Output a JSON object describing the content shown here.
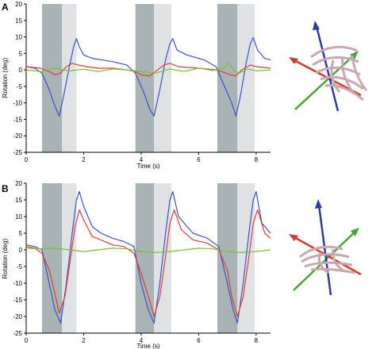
{
  "chart_data": [
    {
      "panel": "A",
      "type": "line",
      "xlabel": "Time (s)",
      "ylabel": "Rotation (deg)",
      "xlim": [
        0,
        8.5
      ],
      "ylim": [
        -25,
        20
      ],
      "x_ticks": [
        0,
        2,
        4,
        6,
        8
      ],
      "y_ticks": [
        -25,
        -20,
        -15,
        -10,
        -5,
        0,
        5,
        10,
        15,
        20
      ],
      "shaded_bands": [
        {
          "x0": 0.55,
          "x1": 1.25,
          "color": "#a7b3b4"
        },
        {
          "x0": 1.25,
          "x1": 1.75,
          "color": "#dfe2e4"
        },
        {
          "x0": 3.8,
          "x1": 4.45,
          "color": "#a7b3b4"
        },
        {
          "x0": 4.45,
          "x1": 5.05,
          "color": "#dfe2e4"
        },
        {
          "x0": 6.65,
          "x1": 7.35,
          "color": "#a7b3b4"
        },
        {
          "x0": 7.35,
          "x1": 7.95,
          "color": "#dfe2e4"
        }
      ],
      "series": [
        {
          "color": "#3b53c8",
          "x": [
            0,
            0.3,
            0.55,
            0.8,
            1.0,
            1.15,
            1.3,
            1.5,
            1.65,
            1.75,
            1.85,
            2.0,
            2.3,
            3.0,
            3.5,
            3.8,
            4.1,
            4.3,
            4.45,
            4.65,
            4.85,
            5.0,
            5.1,
            5.25,
            5.6,
            6.2,
            6.6,
            6.9,
            7.15,
            7.3,
            7.45,
            7.65,
            7.8,
            7.9,
            8.05,
            8.3,
            8.5
          ],
          "y": [
            1,
            0.5,
            -1,
            -6,
            -11,
            -14,
            -8,
            1,
            7,
            9.5,
            7,
            4.5,
            3.5,
            2.5,
            1.5,
            -1,
            -7,
            -12,
            -14,
            -6,
            3,
            8,
            9.5,
            6,
            4.5,
            3,
            1,
            -5,
            -10,
            -14,
            -8,
            2,
            8,
            9.8,
            6,
            3.5,
            3
          ]
        },
        {
          "color": "#e03d2f",
          "x": [
            0,
            0.5,
            0.8,
            1.0,
            1.2,
            1.4,
            1.6,
            1.8,
            2.1,
            2.5,
            3.0,
            3.5,
            3.8,
            4.0,
            4.3,
            4.5,
            4.8,
            5.0,
            5.3,
            6.0,
            6.6,
            6.9,
            7.1,
            7.3,
            7.5,
            7.8,
            8.0,
            8.5
          ],
          "y": [
            1,
            0.5,
            -0.5,
            -1.5,
            -1,
            1,
            2,
            1.5,
            1,
            0.5,
            0.5,
            0,
            -0.5,
            -1.5,
            -1.8,
            -0.5,
            1.5,
            2,
            1,
            0.5,
            0,
            -0.8,
            -1.5,
            -1.8,
            0,
            1.5,
            1,
            0.5
          ]
        },
        {
          "color": "#7ac12b",
          "x": [
            0,
            0.5,
            1.0,
            1.5,
            2.0,
            2.5,
            3.0,
            3.5,
            4.0,
            4.5,
            5.0,
            5.5,
            6.0,
            6.5,
            6.9,
            7.05,
            7.2,
            7.4,
            7.7,
            8.0,
            8.5
          ],
          "y": [
            0,
            -0.5,
            0.5,
            -0.3,
            0.2,
            -0.5,
            0.3,
            0,
            -0.5,
            -1,
            0.3,
            -0.5,
            0.5,
            -0.2,
            0.5,
            2.2,
            0,
            -1,
            0.3,
            -0.3,
            0
          ]
        }
      ]
    },
    {
      "panel": "B",
      "type": "line",
      "xlabel": "Time (s)",
      "ylabel": "Rotation (deg)",
      "xlim": [
        0,
        8.5
      ],
      "ylim": [
        -25,
        20
      ],
      "x_ticks": [
        0,
        2,
        4,
        6,
        8
      ],
      "y_ticks": [
        -25,
        -20,
        -15,
        -10,
        -5,
        0,
        5,
        10,
        15,
        20
      ],
      "shaded_bands": [
        {
          "x0": 0.55,
          "x1": 1.25,
          "color": "#a7b3b4"
        },
        {
          "x0": 1.25,
          "x1": 1.75,
          "color": "#dfe2e4"
        },
        {
          "x0": 3.8,
          "x1": 4.45,
          "color": "#a7b3b4"
        },
        {
          "x0": 4.45,
          "x1": 5.05,
          "color": "#dfe2e4"
        },
        {
          "x0": 6.65,
          "x1": 7.35,
          "color": "#a7b3b4"
        },
        {
          "x0": 7.35,
          "x1": 7.95,
          "color": "#dfe2e4"
        }
      ],
      "series": [
        {
          "color": "#3b53c8",
          "x": [
            0,
            0.3,
            0.55,
            0.8,
            1.0,
            1.2,
            1.4,
            1.6,
            1.75,
            1.85,
            2.0,
            2.3,
            2.6,
            3.0,
            3.4,
            3.75,
            4.0,
            4.25,
            4.45,
            4.65,
            4.85,
            5.0,
            5.1,
            5.3,
            5.8,
            6.3,
            6.7,
            7.0,
            7.2,
            7.35,
            7.55,
            7.75,
            7.9,
            8.0,
            8.2,
            8.5
          ],
          "y": [
            1.5,
            1,
            0,
            -10,
            -18,
            -22,
            -10,
            5,
            15,
            17.5,
            13,
            7,
            5,
            3.5,
            2.5,
            1,
            -10,
            -18,
            -22,
            -10,
            5,
            15,
            17.5,
            10,
            5,
            3.5,
            1,
            -10,
            -18,
            -22,
            -10,
            5,
            15,
            17.5,
            8,
            5
          ]
        },
        {
          "color": "#e03d2f",
          "x": [
            0,
            0.3,
            0.55,
            0.8,
            1.0,
            1.15,
            1.35,
            1.55,
            1.7,
            1.85,
            2.0,
            2.3,
            2.6,
            3.0,
            3.4,
            3.75,
            4.0,
            4.25,
            4.45,
            4.65,
            4.85,
            5.0,
            5.15,
            5.4,
            5.8,
            6.3,
            6.7,
            7.0,
            7.15,
            7.35,
            7.55,
            7.75,
            7.9,
            8.05,
            8.3,
            8.5
          ],
          "y": [
            1,
            0.5,
            -1,
            -6,
            -13,
            -19,
            -14,
            -2,
            7,
            12,
            9,
            4,
            3,
            1.5,
            1,
            -1,
            -7,
            -14,
            -20,
            -14,
            -2,
            8,
            12,
            6,
            3,
            2,
            0,
            -6,
            -14,
            -20,
            -14,
            -2,
            8,
            12,
            5,
            3.5
          ]
        },
        {
          "color": "#7ac12b",
          "x": [
            0,
            0.5,
            1.0,
            1.5,
            2.0,
            2.5,
            3.0,
            3.5,
            4.0,
            4.5,
            5.0,
            5.5,
            6.0,
            6.5,
            7.0,
            7.5,
            8.0,
            8.5
          ],
          "y": [
            0.5,
            0.3,
            0.5,
            0,
            -0.5,
            0,
            0.5,
            0.3,
            -0.5,
            -0.8,
            -0.5,
            0,
            0.5,
            0.3,
            -0.5,
            -0.8,
            -0.5,
            0
          ]
        }
      ]
    }
  ],
  "panels": [
    {
      "letter": "A"
    },
    {
      "letter": "B"
    }
  ],
  "axis_glyphs": {
    "colors": {
      "blue": "#2b3aa6",
      "red": "#d23a2c",
      "green": "#46a52f",
      "model": "#c9a8b0"
    }
  }
}
